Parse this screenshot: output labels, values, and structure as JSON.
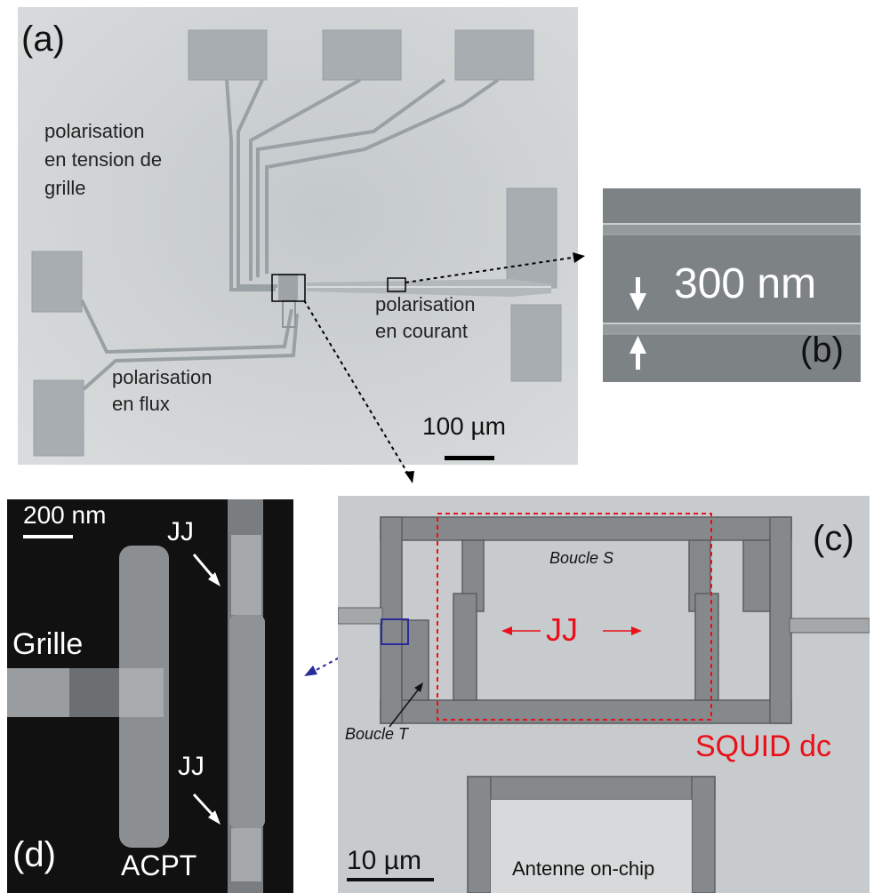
{
  "panel_a": {
    "label": "(a)",
    "gate_bias": [
      "polarisation",
      "en tension de",
      "grille"
    ],
    "current_bias": [
      "polarisation",
      "en courant"
    ],
    "flux_bias": [
      "polarisation",
      "en flux"
    ],
    "scale_bar": "100 µm"
  },
  "panel_b": {
    "label": "(b)",
    "dimension": "300 nm"
  },
  "panel_c": {
    "label": "(c)",
    "loop_s": "Boucle S",
    "loop_t": "Boucle T",
    "junction": "JJ",
    "squid": "SQUID dc",
    "scale_bar": "10 µm",
    "antenna": "Antenne on-chip"
  },
  "panel_d": {
    "label": "(d)",
    "scale_bar": "200 nm",
    "gate": "Grille",
    "junction_top": "JJ",
    "junction_bottom": "JJ",
    "device": "ACPT"
  },
  "colors": {
    "annotation_red": "#e8101a",
    "zoom_box_blue": "#2a2a9a",
    "sem_dark": "#111111"
  }
}
